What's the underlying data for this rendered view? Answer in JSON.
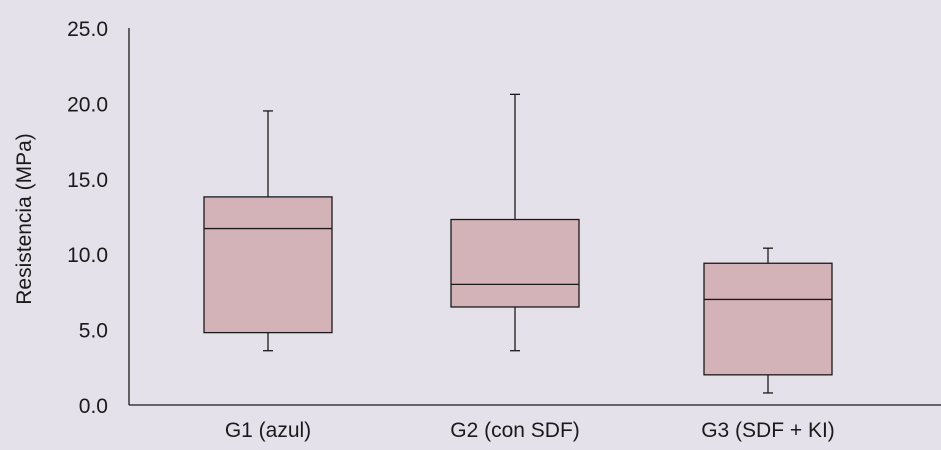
{
  "chart_data": {
    "type": "box",
    "title": "",
    "xlabel": "",
    "ylabel": "Resistencia (MPa)",
    "ylim": [
      0,
      25
    ],
    "yticks": [
      "0.0",
      "5.0",
      "10.0",
      "15.0",
      "20.0",
      "25.0"
    ],
    "grid": false,
    "legend": "none",
    "categories": [
      "G1 (azul)",
      "G2 (con SDF)",
      "G3 (SDF + KI)"
    ],
    "boxes": [
      {
        "min": 3.6,
        "q1": 4.8,
        "median": 11.7,
        "q3": 13.8,
        "max": 19.5
      },
      {
        "min": 3.6,
        "q1": 6.5,
        "median": 8.0,
        "q3": 12.3,
        "max": 20.6
      },
      {
        "min": 0.8,
        "q1": 2.0,
        "median": 7.0,
        "q3": 9.4,
        "max": 10.4
      }
    ],
    "colors": {
      "box_fill": "#d4b3b8",
      "stroke": "#1a1a1a",
      "background": "#e5e1ea"
    }
  }
}
